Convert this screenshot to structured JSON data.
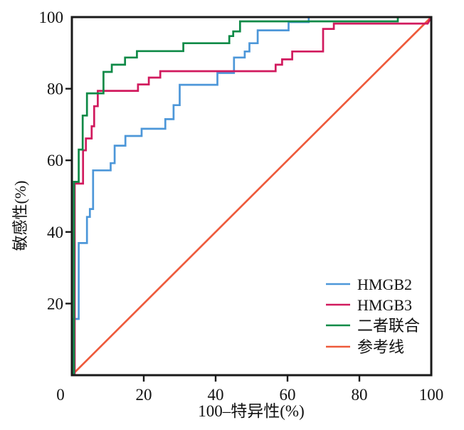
{
  "chart_data": {
    "type": "line",
    "subtype": "roc-step-curves",
    "title": "",
    "xlabel": "100–特异性(%)",
    "ylabel": "敏感性(%)",
    "xlim": [
      0,
      100
    ],
    "ylim": [
      0,
      100
    ],
    "x_tick_labels": [
      0,
      20,
      40,
      60,
      80,
      100
    ],
    "y_tick_labels": [
      20,
      40,
      60,
      80,
      100
    ],
    "tick_marks": [
      20,
      40,
      60,
      80
    ],
    "grid": false,
    "legend_position": "inside lower-right",
    "axis_color": "#1a1a1a",
    "series": [
      {
        "id": "hmgb2",
        "name": "HMGB2",
        "color": "#4d97d9",
        "points": [
          [
            0,
            0
          ],
          [
            0.6,
            0
          ],
          [
            0.6,
            15.7
          ],
          [
            1.9,
            15.7
          ],
          [
            1.9,
            36.9
          ],
          [
            4.2,
            36.9
          ],
          [
            4.2,
            44.2
          ],
          [
            5,
            44.2
          ],
          [
            5,
            46.4
          ],
          [
            5.9,
            46.4
          ],
          [
            5.9,
            57.2
          ],
          [
            10.8,
            57.2
          ],
          [
            10.8,
            59.2
          ],
          [
            11.9,
            59.2
          ],
          [
            11.9,
            64.1
          ],
          [
            14.9,
            64.1
          ],
          [
            14.9,
            66.8
          ],
          [
            19.4,
            66.8
          ],
          [
            19.4,
            68.8
          ],
          [
            26,
            68.8
          ],
          [
            26,
            71.5
          ],
          [
            28.3,
            71.5
          ],
          [
            28.3,
            75.4
          ],
          [
            30,
            75.4
          ],
          [
            30,
            81.1
          ],
          [
            40.5,
            81.1
          ],
          [
            40.5,
            84.4
          ],
          [
            45.1,
            84.4
          ],
          [
            45.1,
            88.7
          ],
          [
            48.1,
            88.7
          ],
          [
            48.1,
            90.4
          ],
          [
            49.4,
            90.4
          ],
          [
            49.4,
            92.7
          ],
          [
            51.7,
            92.7
          ],
          [
            51.7,
            96.3
          ],
          [
            60.3,
            96.3
          ],
          [
            60.3,
            98.6
          ],
          [
            65.9,
            98.6
          ],
          [
            65.9,
            100
          ],
          [
            100,
            100
          ]
        ]
      },
      {
        "id": "hmgb3",
        "name": "HMGB3",
        "color": "#d11a5e",
        "points": [
          [
            0,
            0
          ],
          [
            0.8,
            0
          ],
          [
            0.8,
            53.5
          ],
          [
            3.1,
            53.5
          ],
          [
            3.1,
            62.8
          ],
          [
            3.9,
            62.8
          ],
          [
            3.9,
            66.1
          ],
          [
            5.5,
            66.1
          ],
          [
            5.5,
            69.5
          ],
          [
            6.2,
            69.5
          ],
          [
            6.2,
            75.1
          ],
          [
            7.2,
            75.1
          ],
          [
            7.2,
            79.4
          ],
          [
            18.4,
            79.4
          ],
          [
            18.4,
            81.2
          ],
          [
            21.4,
            81.2
          ],
          [
            21.4,
            83.1
          ],
          [
            24.6,
            83.1
          ],
          [
            24.6,
            84.9
          ],
          [
            56.7,
            84.9
          ],
          [
            56.7,
            86.7
          ],
          [
            58.5,
            86.7
          ],
          [
            58.5,
            88.2
          ],
          [
            61.3,
            88.2
          ],
          [
            61.3,
            90.4
          ],
          [
            69.9,
            90.4
          ],
          [
            69.9,
            96.7
          ],
          [
            72.9,
            96.7
          ],
          [
            72.9,
            98.2
          ],
          [
            99,
            98.2
          ],
          [
            100,
            100
          ]
        ]
      },
      {
        "id": "combined",
        "name": "二者联合",
        "color": "#0f8a47",
        "points": [
          [
            0,
            0
          ],
          [
            0.6,
            0
          ],
          [
            0.6,
            54
          ],
          [
            1.9,
            54
          ],
          [
            1.9,
            63
          ],
          [
            3,
            63
          ],
          [
            3,
            72.5
          ],
          [
            4.2,
            72.5
          ],
          [
            4.2,
            78.7
          ],
          [
            8.8,
            78.7
          ],
          [
            8.8,
            84.7
          ],
          [
            11.1,
            84.7
          ],
          [
            11.1,
            86.7
          ],
          [
            14.8,
            86.7
          ],
          [
            14.8,
            88.7
          ],
          [
            18.1,
            88.7
          ],
          [
            18.1,
            90.5
          ],
          [
            31,
            90.5
          ],
          [
            31,
            92.7
          ],
          [
            43.8,
            92.7
          ],
          [
            43.8,
            94.7
          ],
          [
            44.9,
            94.7
          ],
          [
            44.9,
            96
          ],
          [
            46.8,
            96
          ],
          [
            46.8,
            98.8
          ],
          [
            90.7,
            98.8
          ],
          [
            90.7,
            100
          ],
          [
            100,
            100
          ]
        ]
      },
      {
        "id": "reference",
        "name": "参考线",
        "color": "#ee5a3b",
        "points": [
          [
            0,
            0
          ],
          [
            100,
            100
          ]
        ]
      }
    ]
  }
}
